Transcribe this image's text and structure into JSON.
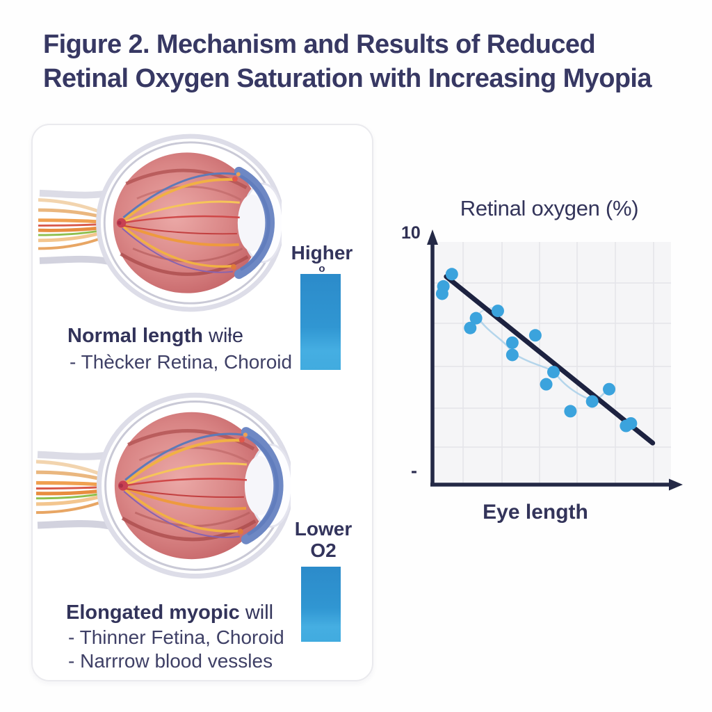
{
  "figure_title": {
    "line1": "Figure 2. Mechanism and Results of Reduced",
    "line2": "Retinal Oxygen Saturation with Increasing Myopia"
  },
  "left_panel": {
    "normal_eye": {
      "o2_label": "Higher",
      "o2_sublabel": "o",
      "heading_bold": "Normal length",
      "heading_rest": " wiƚe",
      "bullet_1": "- Thècker Retina, Choroid"
    },
    "myopic_eye": {
      "o2_label_line1": "Lower",
      "o2_label_line2": "O2",
      "heading_bold": "Elongated myopic",
      "heading_rest": " will",
      "bullet_1": "- Thinner Fetina, Choroid",
      "bullet_2": "- Narrrow blood vessles"
    }
  },
  "chart_data": {
    "type": "scatter",
    "title": "Retinal oxygen (%)",
    "xlabel": "Eye length",
    "ylabel": "Retinal oxygen (%)",
    "y_axis_top_tick": "10",
    "y_axis_lower_tick": "-",
    "ylim": [
      0,
      10
    ],
    "xlim": [
      0,
      100
    ],
    "x_axis_note": "axis unlabeled; increasing eye length left to right",
    "grid": true,
    "legend_position": "none",
    "points": [
      {
        "x": 8,
        "y": 8.6
      },
      {
        "x": 4.5,
        "y": 8.1
      },
      {
        "x": 4,
        "y": 7.8
      },
      {
        "x": 27,
        "y": 7.1
      },
      {
        "x": 18,
        "y": 6.8
      },
      {
        "x": 15.6,
        "y": 6.4
      },
      {
        "x": 42.5,
        "y": 6.1
      },
      {
        "x": 33,
        "y": 5.8
      },
      {
        "x": 33,
        "y": 5.3
      },
      {
        "x": 50,
        "y": 4.6
      },
      {
        "x": 47,
        "y": 4.1
      },
      {
        "x": 73,
        "y": 3.9
      },
      {
        "x": 66,
        "y": 3.4
      },
      {
        "x": 57,
        "y": 3.0
      },
      {
        "x": 82,
        "y": 2.5
      },
      {
        "x": 80,
        "y": 2.4
      }
    ],
    "trend_line": {
      "x1": 5.7,
      "y1": 8.5,
      "x2": 91,
      "y2": 1.7
    }
  },
  "colors": {
    "title_navy": "#373863",
    "text_navy": "#33345c",
    "point_blue": "#3ba3dd",
    "trend_navy": "#1d2240",
    "axis_navy": "#242946",
    "grid_gray": "#e4e4e9",
    "plot_bg": "#f5f5f7",
    "bar_top_blue": "#2c8bca",
    "bar_bottom_blue": "#45aee2",
    "connector_light_blue": "#a8cfe9"
  }
}
